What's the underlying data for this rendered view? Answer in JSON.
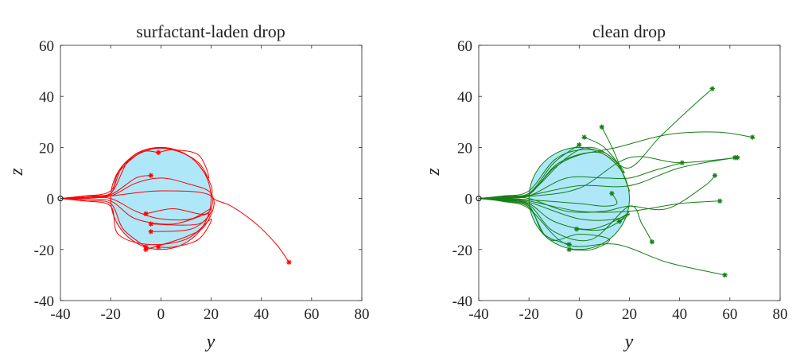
{
  "chart_data": [
    {
      "type": "line",
      "title": "surfactant-laden drop",
      "xlabel": "y",
      "ylabel": "z",
      "xlim": [
        -40,
        80
      ],
      "ylim": [
        -40,
        60
      ],
      "xticks": [
        -40,
        -20,
        0,
        20,
        40,
        60,
        80
      ],
      "yticks": [
        -40,
        -20,
        0,
        20,
        40,
        60
      ],
      "grid": false,
      "color": "#ff0000",
      "drop": {
        "center": [
          0,
          0
        ],
        "radius": 20,
        "fill": "#aee8f8"
      },
      "start": [
        -40,
        0
      ],
      "trajectories": [
        [
          [
            -40,
            0
          ],
          [
            -30,
            1
          ],
          [
            -20,
            3
          ],
          [
            -15,
            13
          ],
          [
            -5,
            19
          ],
          [
            5,
            19
          ],
          [
            15,
            14
          ],
          [
            20,
            5
          ],
          [
            21,
            0
          ],
          [
            28,
            -3
          ],
          [
            38,
            -10
          ],
          [
            46,
            -18
          ],
          [
            51,
            -25
          ]
        ],
        [
          [
            -40,
            0
          ],
          [
            -30,
            1
          ],
          [
            -20,
            2
          ],
          [
            -17,
            10
          ],
          [
            -8,
            18
          ],
          [
            -1,
            18
          ]
        ],
        [
          [
            -40,
            0
          ],
          [
            -30,
            0.5
          ],
          [
            -20,
            1
          ],
          [
            -10,
            6
          ],
          [
            0,
            8
          ],
          [
            10,
            6
          ],
          [
            20,
            2
          ],
          [
            18,
            -6
          ],
          [
            5,
            -4
          ],
          [
            -6,
            -6
          ]
        ],
        [
          [
            -40,
            0
          ],
          [
            -30,
            0
          ],
          [
            -20,
            0
          ],
          [
            -10,
            -5
          ],
          [
            0,
            -8
          ],
          [
            12,
            -8
          ],
          [
            20,
            -4
          ],
          [
            15,
            -10
          ],
          [
            -4,
            -10
          ]
        ],
        [
          [
            -40,
            0
          ],
          [
            -30,
            -0.5
          ],
          [
            -20,
            -1
          ],
          [
            -10,
            -8
          ],
          [
            5,
            -10
          ],
          [
            19,
            -6
          ],
          [
            12,
            -12
          ],
          [
            -4,
            -13
          ]
        ],
        [
          [
            -40,
            0
          ],
          [
            -30,
            -1
          ],
          [
            -20,
            -2
          ],
          [
            -15,
            -12
          ],
          [
            -6,
            -19
          ]
        ],
        [
          [
            -40,
            0
          ],
          [
            -30,
            -1
          ],
          [
            -20,
            -3
          ],
          [
            -17,
            -14
          ],
          [
            -5,
            -18
          ],
          [
            10,
            -16
          ],
          [
            20,
            -8
          ],
          [
            15,
            -16
          ],
          [
            5,
            -19
          ],
          [
            -1,
            -19
          ]
        ],
        [
          [
            -40,
            0
          ],
          [
            -30,
            0.3
          ],
          [
            -20,
            1.5
          ],
          [
            -10,
            8
          ],
          [
            -4,
            9
          ]
        ],
        [
          [
            -40,
            0
          ],
          [
            -30,
            0.5
          ],
          [
            -20,
            1
          ],
          [
            0,
            3
          ],
          [
            20,
            1
          ],
          [
            18,
            -10
          ],
          [
            10,
            -15
          ],
          [
            -6,
            -20
          ]
        ],
        [
          [
            -40,
            0
          ],
          [
            -30,
            1
          ],
          [
            -20,
            2
          ],
          [
            -12,
            16
          ],
          [
            0,
            20
          ],
          [
            12,
            16
          ],
          [
            19,
            8
          ],
          [
            15,
            17
          ],
          [
            5,
            19
          ],
          [
            -1,
            18
          ]
        ]
      ],
      "endpoints": [
        [
          51,
          -25
        ],
        [
          -1,
          18
        ],
        [
          -4,
          9
        ],
        [
          -6,
          -6
        ],
        [
          -4,
          -10
        ],
        [
          -4,
          -13
        ],
        [
          -6,
          -19
        ],
        [
          -6,
          -20
        ],
        [
          -1,
          -19
        ]
      ]
    },
    {
      "type": "line",
      "title": "clean drop",
      "xlabel": "y",
      "ylabel": "z",
      "xlim": [
        -40,
        80
      ],
      "ylim": [
        -40,
        60
      ],
      "xticks": [
        -40,
        -20,
        0,
        20,
        40,
        60,
        80
      ],
      "yticks": [
        -40,
        -20,
        0,
        20,
        40,
        60
      ],
      "grid": false,
      "color": "#157f15",
      "drop": {
        "center": [
          0,
          0
        ],
        "radius": 20,
        "fill": "#aee8f8"
      },
      "start": [
        -40,
        0
      ],
      "trajectories": [
        [
          [
            -40,
            0
          ],
          [
            -30,
            1
          ],
          [
            -20,
            3
          ],
          [
            -10,
            15
          ],
          [
            0,
            19
          ],
          [
            10,
            18
          ],
          [
            20,
            12
          ],
          [
            32,
            24
          ],
          [
            45,
            36
          ],
          [
            53,
            43
          ]
        ],
        [
          [
            -40,
            0
          ],
          [
            -30,
            1
          ],
          [
            -20,
            2
          ],
          [
            -10,
            12
          ],
          [
            0,
            17
          ],
          [
            15,
            20
          ],
          [
            35,
            25
          ],
          [
            55,
            26
          ],
          [
            69,
            24
          ]
        ],
        [
          [
            -40,
            0
          ],
          [
            -30,
            0.8
          ],
          [
            -20,
            2
          ],
          [
            -5,
            16
          ],
          [
            5,
            20
          ],
          [
            15,
            14
          ],
          [
            20,
            3
          ],
          [
            14,
            18
          ],
          [
            9,
            28
          ]
        ],
        [
          [
            -40,
            0
          ],
          [
            -30,
            0.5
          ],
          [
            -20,
            1.5
          ],
          [
            -8,
            14
          ],
          [
            8,
            18
          ],
          [
            18,
            10
          ],
          [
            10,
            20
          ],
          [
            2,
            24
          ]
        ],
        [
          [
            -40,
            0
          ],
          [
            -30,
            0.6
          ],
          [
            -20,
            2
          ],
          [
            -10,
            14
          ],
          [
            0,
            21
          ]
        ],
        [
          [
            -40,
            0
          ],
          [
            -30,
            0.3
          ],
          [
            -20,
            1
          ],
          [
            -5,
            8
          ],
          [
            10,
            8
          ],
          [
            20,
            8
          ],
          [
            30,
            11
          ],
          [
            41,
            14
          ]
        ],
        [
          [
            -40,
            0
          ],
          [
            -30,
            0.4
          ],
          [
            -20,
            1.2
          ],
          [
            0,
            5
          ],
          [
            20,
            5
          ],
          [
            40,
            12
          ],
          [
            62,
            16
          ]
        ],
        [
          [
            -40,
            0
          ],
          [
            -30,
            0.2
          ],
          [
            -20,
            0.8
          ],
          [
            0,
            4
          ],
          [
            20,
            16
          ],
          [
            40,
            14
          ],
          [
            63,
            16
          ]
        ],
        [
          [
            -40,
            0
          ],
          [
            -30,
            0
          ],
          [
            -20,
            0
          ],
          [
            -5,
            -5
          ],
          [
            10,
            -5
          ],
          [
            20,
            -3
          ],
          [
            35,
            -4
          ],
          [
            50,
            5
          ],
          [
            54,
            9
          ]
        ],
        [
          [
            -40,
            0
          ],
          [
            -30,
            0
          ],
          [
            -20,
            -0.5
          ],
          [
            0,
            -2
          ],
          [
            10,
            -3
          ],
          [
            15,
            -2
          ],
          [
            13,
            2
          ]
        ],
        [
          [
            -40,
            0
          ],
          [
            -30,
            -0.2
          ],
          [
            -20,
            -1
          ],
          [
            0,
            -5
          ],
          [
            20,
            -5
          ],
          [
            40,
            -2
          ],
          [
            56,
            -1
          ]
        ],
        [
          [
            -40,
            0
          ],
          [
            -30,
            -0.4
          ],
          [
            -20,
            -1.5
          ],
          [
            0,
            -8
          ],
          [
            15,
            -8
          ],
          [
            20,
            -5
          ],
          [
            16,
            -9
          ]
        ],
        [
          [
            -40,
            0
          ],
          [
            -30,
            -0.6
          ],
          [
            -20,
            -2
          ],
          [
            -10,
            -9
          ],
          [
            5,
            -12
          ],
          [
            20,
            -6
          ],
          [
            10,
            -12
          ],
          [
            -1,
            -12
          ]
        ],
        [
          [
            -40,
            0
          ],
          [
            -30,
            -0.8
          ],
          [
            -20,
            -2.5
          ],
          [
            -10,
            -13
          ],
          [
            5,
            -16
          ],
          [
            20,
            -3
          ],
          [
            25,
            -10
          ],
          [
            29,
            -17
          ]
        ],
        [
          [
            -40,
            0
          ],
          [
            -30,
            -1
          ],
          [
            -20,
            -3
          ],
          [
            -14,
            -14
          ],
          [
            -4,
            -18
          ]
        ],
        [
          [
            -40,
            0
          ],
          [
            -30,
            -1
          ],
          [
            -20,
            -3.5
          ],
          [
            -12,
            -16
          ],
          [
            0,
            -14
          ],
          [
            12,
            -16
          ],
          [
            5,
            -20
          ],
          [
            -4,
            -20
          ]
        ],
        [
          [
            -40,
            0
          ],
          [
            -30,
            -1.2
          ],
          [
            -20,
            -4
          ],
          [
            -5,
            -18
          ],
          [
            15,
            -18
          ],
          [
            35,
            -25
          ],
          [
            58,
            -30
          ]
        ]
      ],
      "endpoints": [
        [
          53,
          43
        ],
        [
          69,
          24
        ],
        [
          9,
          28
        ],
        [
          2,
          24
        ],
        [
          0,
          21
        ],
        [
          41,
          14
        ],
        [
          62,
          16
        ],
        [
          63,
          16
        ],
        [
          54,
          9
        ],
        [
          13,
          2
        ],
        [
          56,
          -1
        ],
        [
          16,
          -9
        ],
        [
          -1,
          -12
        ],
        [
          29,
          -17
        ],
        [
          -4,
          -18
        ],
        [
          -4,
          -20
        ],
        [
          58,
          -30
        ]
      ]
    }
  ]
}
